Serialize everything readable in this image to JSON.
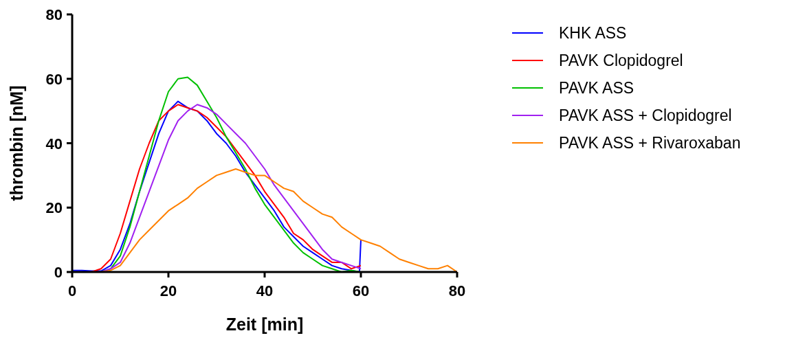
{
  "chart_data": {
    "type": "line",
    "xlabel": "Zeit [min]",
    "ylabel": "thrombin [nM]",
    "xlim": [
      0,
      80
    ],
    "ylim": [
      0,
      80
    ],
    "xticks": [
      0,
      20,
      40,
      60,
      80
    ],
    "yticks": [
      0,
      20,
      40,
      60,
      80
    ],
    "legend": "right",
    "grid": false,
    "marker": "none",
    "line_style": "solid",
    "series": [
      {
        "name": "KHK ASS",
        "color": "#0000ff",
        "x": [
          0,
          2,
          4,
          6,
          8,
          10,
          12,
          14,
          16,
          18,
          20,
          22,
          24,
          26,
          28,
          30,
          32,
          34,
          36,
          38,
          40,
          42,
          44,
          46,
          48,
          50,
          52,
          54,
          56,
          58,
          59.7,
          60
        ],
        "values": [
          0.5,
          0.5,
          0.3,
          0.3,
          2,
          7,
          15,
          25,
          34,
          43,
          50,
          53,
          51,
          50,
          47,
          43,
          40,
          36,
          31,
          27,
          23,
          19,
          14,
          11,
          8,
          6,
          4,
          2,
          1,
          0.5,
          0,
          10
        ]
      },
      {
        "name": "PAVK Clopidogrel",
        "color": "#ff0000",
        "x": [
          0,
          2,
          4,
          6,
          8,
          10,
          12,
          14,
          16,
          18,
          20,
          22,
          24,
          26,
          28,
          30,
          32,
          34,
          36,
          38,
          40,
          42,
          44,
          46,
          48,
          50,
          52,
          54,
          56,
          58,
          60
        ],
        "values": [
          0,
          0,
          0,
          1,
          4,
          12,
          22,
          32,
          40,
          47,
          50,
          52,
          51,
          50,
          48,
          45,
          42,
          38,
          34,
          30,
          25,
          21,
          17,
          12,
          10,
          7,
          5,
          3,
          3,
          1,
          2
        ]
      },
      {
        "name": "PAVK ASS",
        "color": "#00c000",
        "x": [
          6,
          8,
          10,
          12,
          14,
          16,
          18,
          20,
          22,
          24,
          26,
          28,
          30,
          32,
          34,
          36,
          38,
          40,
          42,
          44,
          46,
          48,
          50,
          52,
          54,
          56,
          58,
          60
        ],
        "values": [
          0,
          1,
          5,
          14,
          25,
          36,
          47,
          56,
          60,
          60.5,
          58,
          53,
          48,
          42,
          37,
          32,
          26,
          21,
          17,
          13,
          9,
          6,
          4,
          2,
          1,
          0,
          0.5,
          0
        ]
      },
      {
        "name": "PAVK ASS + Clopidogrel",
        "color": "#a020f0",
        "x": [
          4,
          6,
          8,
          10,
          12,
          14,
          16,
          18,
          20,
          22,
          24,
          26,
          28,
          30,
          32,
          34,
          36,
          38,
          40,
          42,
          44,
          46,
          48,
          50,
          52,
          54,
          56,
          58,
          60
        ],
        "values": [
          0,
          0,
          1,
          3,
          9,
          17,
          25,
          33,
          41,
          47,
          50,
          52,
          51,
          49,
          46,
          43,
          40,
          36,
          32,
          27,
          23,
          19,
          15,
          11,
          7,
          4,
          3,
          2,
          1
        ]
      },
      {
        "name": "PAVK ASS + Rivaroxaban",
        "color": "#ff8000",
        "x": [
          6,
          8,
          10,
          12,
          14,
          16,
          18,
          20,
          22,
          24,
          26,
          28,
          30,
          32,
          34,
          36,
          38,
          40,
          42,
          44,
          46,
          48,
          50,
          52,
          54,
          56,
          58,
          60,
          62,
          64,
          66,
          68,
          70,
          72,
          74,
          76,
          78,
          80
        ],
        "values": [
          0,
          0.5,
          2,
          6,
          10,
          13,
          16,
          19,
          21,
          23,
          26,
          28,
          30,
          31,
          32,
          31,
          30,
          30,
          28,
          26,
          25,
          22,
          20,
          18,
          17,
          14,
          12,
          10,
          9,
          8,
          6,
          4,
          3,
          2,
          1,
          1,
          2,
          0
        ]
      }
    ]
  }
}
